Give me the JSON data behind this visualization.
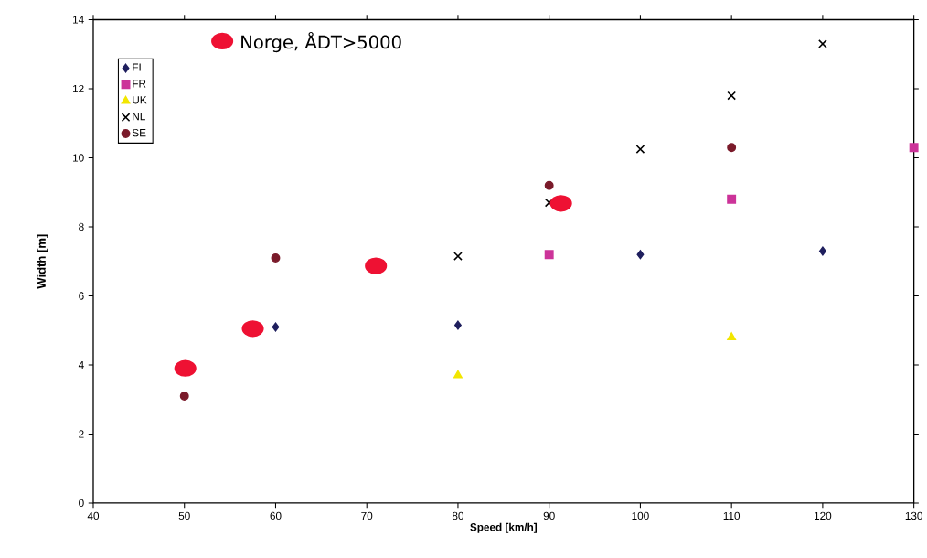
{
  "chart_data": {
    "type": "scatter",
    "xlabel": "Speed [km/h]",
    "ylabel": "Width [m]",
    "xlim": [
      40,
      130
    ],
    "ylim": [
      0,
      14
    ],
    "xticks": [
      40,
      50,
      60,
      70,
      80,
      90,
      100,
      110,
      120,
      130
    ],
    "yticks": [
      0,
      2,
      4,
      6,
      8,
      10,
      12,
      14
    ],
    "grid": false,
    "legend": "top left",
    "series": [
      {
        "name": "FI",
        "color": "#1f1f5e",
        "marker": "diamond",
        "x": [
          60,
          80,
          100,
          120
        ],
        "values": [
          5.1,
          5.15,
          7.2,
          7.3
        ]
      },
      {
        "name": "FR",
        "color": "#cc3399",
        "marker": "square",
        "x": [
          90,
          110,
          130
        ],
        "values": [
          7.2,
          8.8,
          10.3
        ]
      },
      {
        "name": "UK",
        "color": "#f2e600",
        "marker": "triangle",
        "x": [
          80,
          110
        ],
        "values": [
          3.7,
          4.8
        ]
      },
      {
        "name": "NL",
        "color": "#000000",
        "marker": "cross",
        "x": [
          80,
          90,
          100,
          110,
          120
        ],
        "values": [
          7.15,
          8.7,
          10.25,
          11.8,
          13.3
        ]
      },
      {
        "name": "SE",
        "color": "#7a1a2a",
        "marker": "circle",
        "x": [
          50,
          60,
          90,
          110
        ],
        "values": [
          3.1,
          7.1,
          9.2,
          10.3
        ]
      },
      {
        "name": "Norge, ÅDT>5000",
        "color": "#ee1133",
        "marker": "circle",
        "x": [
          50.1,
          57.5,
          71,
          91.3
        ],
        "values": [
          3.9,
          5.05,
          6.87,
          8.68
        ]
      }
    ]
  }
}
